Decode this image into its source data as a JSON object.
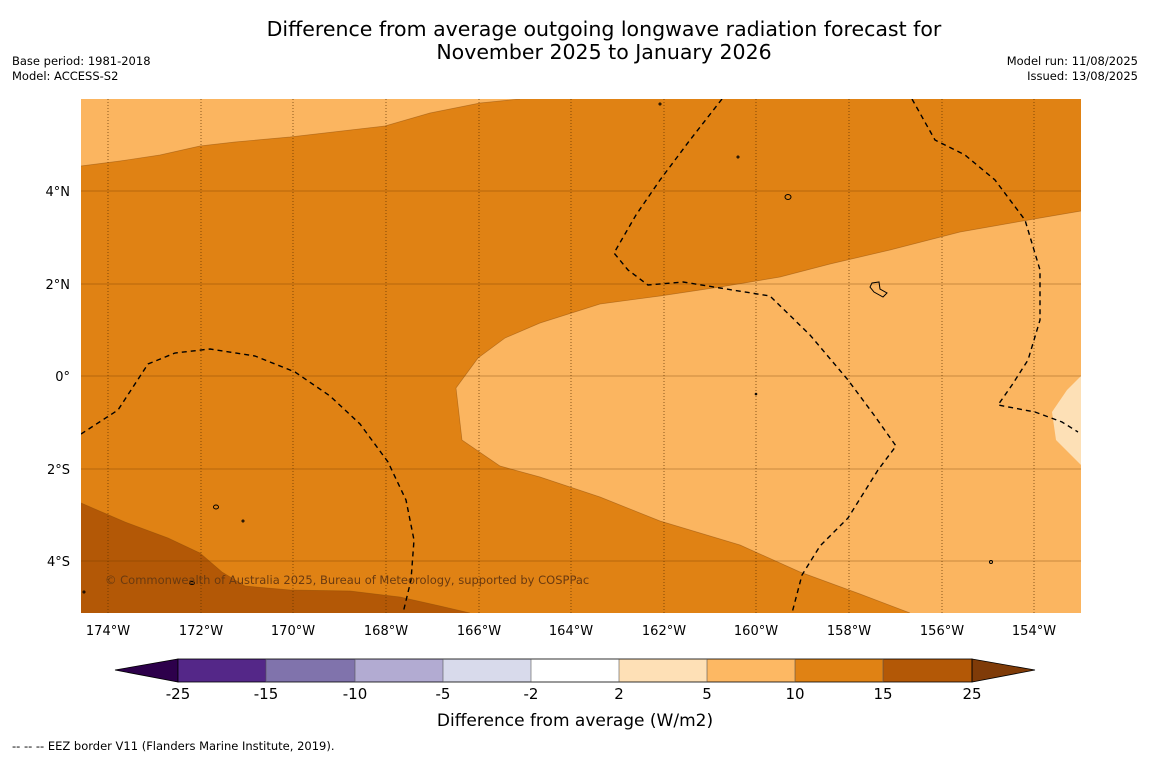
{
  "title_line1": "Difference from average outgoing longwave radiation forecast for",
  "title_line2": "November 2025 to January 2026",
  "base_period": "Base period: 1981-2018",
  "model": "Model: ACCESS-S2",
  "model_run": "Model run: 11/08/2025",
  "issued": "Issued: 13/08/2025",
  "copyright": "© Commonwealth of Australia 2025, Bureau of Meteorology, supported by COSPPac",
  "lon_labels": [
    "174°W",
    "172°W",
    "170°W",
    "168°W",
    "166°W",
    "164°W",
    "162°W",
    "160°W",
    "158°W",
    "156°W",
    "154°W"
  ],
  "lat_labels": [
    "4°N",
    "2°N",
    "0°",
    "2°S",
    "4°S"
  ],
  "colorbar": {
    "label": "Difference from average (W/m2)",
    "ticks": [
      "-25",
      "-15",
      "-10",
      "-5",
      "-2",
      "2",
      "5",
      "10",
      "15",
      "25"
    ],
    "colors": [
      "#542788",
      "#8073ac",
      "#b2abd2",
      "#d8daeb",
      "#ffffff",
      "#fee0b6",
      "#fdb863",
      "#e08214",
      "#b35806"
    ],
    "under_color": "#2d004b",
    "over_color": "#7f3b08"
  },
  "map_colors": {
    "c5_10": "#fbb560",
    "c10_15": "#e08214",
    "c15_25": "#b35806",
    "c2_5": "#fde0b6"
  },
  "footnote": "-- -- -- EEZ border V11 (Flanders Marine Institute, 2019)."
}
